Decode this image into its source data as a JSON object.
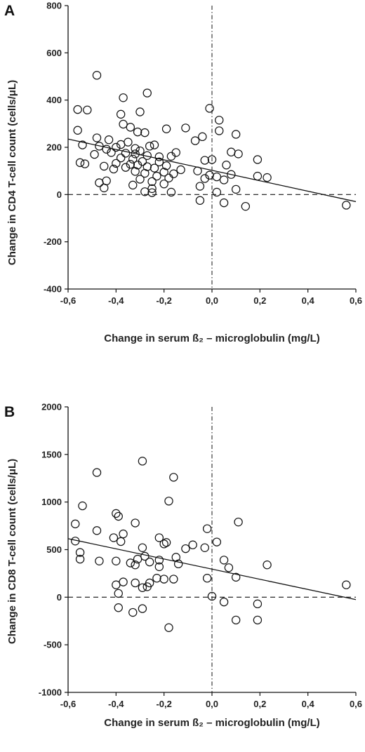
{
  "chart_data": [
    {
      "type": "scatter",
      "panel_label": "A",
      "xlabel": "Change in serum ß₂ – microglobulin (mg/L)",
      "ylabel": "Change in CD4 T-cell count (cells/μL)",
      "xlim": [
        -0.6,
        0.6
      ],
      "ylim": [
        -400,
        800
      ],
      "x_ticks": [
        "-0,6",
        "-0,4",
        "-0,2",
        "0,0",
        "0,2",
        "0,4",
        "0,6"
      ],
      "y_ticks": [
        "800",
        "600",
        "400",
        "200",
        "0",
        "-200",
        "-400"
      ],
      "regression_line": {
        "x": [
          -0.6,
          0.6
        ],
        "y": [
          235,
          -30
        ]
      },
      "reference_lines": {
        "horizontal_dashed_y": 0,
        "vertical_dashdot_x": 0
      },
      "points": [
        {
          "x": -0.48,
          "y": 505
        },
        {
          "x": -0.27,
          "y": 430
        },
        {
          "x": -0.37,
          "y": 410
        },
        {
          "x": -0.01,
          "y": 365
        },
        {
          "x": -0.56,
          "y": 360
        },
        {
          "x": -0.52,
          "y": 358
        },
        {
          "x": -0.3,
          "y": 350
        },
        {
          "x": -0.38,
          "y": 340
        },
        {
          "x": 0.03,
          "y": 315
        },
        {
          "x": -0.37,
          "y": 298
        },
        {
          "x": -0.34,
          "y": 285
        },
        {
          "x": -0.11,
          "y": 282
        },
        {
          "x": -0.56,
          "y": 272
        },
        {
          "x": 0.03,
          "y": 270
        },
        {
          "x": -0.31,
          "y": 265
        },
        {
          "x": -0.28,
          "y": 262
        },
        {
          "x": -0.19,
          "y": 278
        },
        {
          "x": 0.1,
          "y": 255
        },
        {
          "x": -0.04,
          "y": 245
        },
        {
          "x": -0.48,
          "y": 240
        },
        {
          "x": -0.07,
          "y": 228
        },
        {
          "x": -0.43,
          "y": 232
        },
        {
          "x": -0.38,
          "y": 212
        },
        {
          "x": -0.54,
          "y": 210
        },
        {
          "x": -0.47,
          "y": 205
        },
        {
          "x": -0.35,
          "y": 222
        },
        {
          "x": -0.24,
          "y": 210
        },
        {
          "x": -0.26,
          "y": 205
        },
        {
          "x": -0.4,
          "y": 200
        },
        {
          "x": -0.32,
          "y": 195
        },
        {
          "x": -0.44,
          "y": 192
        },
        {
          "x": -0.3,
          "y": 185
        },
        {
          "x": -0.42,
          "y": 178
        },
        {
          "x": -0.36,
          "y": 175
        },
        {
          "x": -0.32,
          "y": 172
        },
        {
          "x": -0.15,
          "y": 178
        },
        {
          "x": -0.49,
          "y": 170
        },
        {
          "x": -0.27,
          "y": 165
        },
        {
          "x": -0.17,
          "y": 162
        },
        {
          "x": -0.22,
          "y": 160
        },
        {
          "x": 0.08,
          "y": 180
        },
        {
          "x": -0.38,
          "y": 155
        },
        {
          "x": -0.33,
          "y": 150
        },
        {
          "x": 0.0,
          "y": 148
        },
        {
          "x": -0.03,
          "y": 145
        },
        {
          "x": 0.11,
          "y": 172
        },
        {
          "x": 0.19,
          "y": 148
        },
        {
          "x": -0.29,
          "y": 140
        },
        {
          "x": -0.22,
          "y": 138
        },
        {
          "x": -0.4,
          "y": 132
        },
        {
          "x": -0.53,
          "y": 130
        },
        {
          "x": -0.55,
          "y": 135
        },
        {
          "x": -0.34,
          "y": 128
        },
        {
          "x": -0.31,
          "y": 125
        },
        {
          "x": -0.19,
          "y": 122
        },
        {
          "x": -0.45,
          "y": 120
        },
        {
          "x": -0.27,
          "y": 118
        },
        {
          "x": 0.06,
          "y": 125
        },
        {
          "x": -0.36,
          "y": 115
        },
        {
          "x": -0.24,
          "y": 112
        },
        {
          "x": -0.41,
          "y": 108
        },
        {
          "x": -0.13,
          "y": 105
        },
        {
          "x": -0.06,
          "y": 100
        },
        {
          "x": -0.32,
          "y": 98
        },
        {
          "x": -0.2,
          "y": 95
        },
        {
          "x": -0.28,
          "y": 90
        },
        {
          "x": -0.16,
          "y": 88
        },
        {
          "x": -0.01,
          "y": 82
        },
        {
          "x": 0.08,
          "y": 85
        },
        {
          "x": -0.23,
          "y": 78
        },
        {
          "x": 0.02,
          "y": 75
        },
        {
          "x": 0.19,
          "y": 78
        },
        {
          "x": 0.23,
          "y": 72
        },
        {
          "x": -0.18,
          "y": 70
        },
        {
          "x": -0.3,
          "y": 65
        },
        {
          "x": -0.03,
          "y": 68
        },
        {
          "x": 0.05,
          "y": 62
        },
        {
          "x": -0.44,
          "y": 58
        },
        {
          "x": -0.25,
          "y": 55
        },
        {
          "x": -0.47,
          "y": 50
        },
        {
          "x": -0.2,
          "y": 45
        },
        {
          "x": -0.33,
          "y": 40
        },
        {
          "x": -0.05,
          "y": 35
        },
        {
          "x": -0.25,
          "y": 25
        },
        {
          "x": -0.45,
          "y": 28
        },
        {
          "x": 0.1,
          "y": 22
        },
        {
          "x": -0.28,
          "y": 12
        },
        {
          "x": -0.17,
          "y": 10
        },
        {
          "x": -0.25,
          "y": 8
        },
        {
          "x": 0.02,
          "y": 10
        },
        {
          "x": -0.05,
          "y": -25
        },
        {
          "x": 0.05,
          "y": -35
        },
        {
          "x": 0.14,
          "y": -50
        },
        {
          "x": 0.56,
          "y": -45
        }
      ]
    },
    {
      "type": "scatter",
      "panel_label": "B",
      "xlabel": "Change in serum ß₂ – microglobulin (mg/L)",
      "ylabel": "Change in CD8 T-cell count (cells/μL)",
      "xlim": [
        -0.6,
        0.6
      ],
      "ylim": [
        -1000,
        2000
      ],
      "x_ticks": [
        "-0,6",
        "-0,4",
        "-0,2",
        "0,0",
        "0,2",
        "0,4",
        "0,6"
      ],
      "y_ticks": [
        "2000",
        "1500",
        "1000",
        "500",
        "0",
        "-500",
        "-1000"
      ],
      "regression_line": {
        "x": [
          -0.6,
          0.6
        ],
        "y": [
          615,
          -25
        ]
      },
      "reference_lines": {
        "horizontal_dashed_y": 0,
        "vertical_dashdot_x": 0
      },
      "points": [
        {
          "x": -0.29,
          "y": 1430
        },
        {
          "x": -0.48,
          "y": 1310
        },
        {
          "x": -0.16,
          "y": 1260
        },
        {
          "x": -0.18,
          "y": 1010
        },
        {
          "x": -0.54,
          "y": 960
        },
        {
          "x": -0.4,
          "y": 880
        },
        {
          "x": -0.39,
          "y": 850
        },
        {
          "x": 0.11,
          "y": 790
        },
        {
          "x": -0.32,
          "y": 780
        },
        {
          "x": -0.57,
          "y": 770
        },
        {
          "x": -0.02,
          "y": 720
        },
        {
          "x": -0.48,
          "y": 700
        },
        {
          "x": -0.37,
          "y": 665
        },
        {
          "x": -0.41,
          "y": 625
        },
        {
          "x": -0.22,
          "y": 625
        },
        {
          "x": -0.38,
          "y": 585
        },
        {
          "x": -0.57,
          "y": 590
        },
        {
          "x": -0.19,
          "y": 575
        },
        {
          "x": -0.2,
          "y": 560
        },
        {
          "x": 0.02,
          "y": 580
        },
        {
          "x": -0.08,
          "y": 550
        },
        {
          "x": -0.11,
          "y": 510
        },
        {
          "x": -0.03,
          "y": 520
        },
        {
          "x": -0.29,
          "y": 520
        },
        {
          "x": -0.55,
          "y": 470
        },
        {
          "x": -0.15,
          "y": 420
        },
        {
          "x": -0.28,
          "y": 430
        },
        {
          "x": -0.31,
          "y": 400
        },
        {
          "x": -0.55,
          "y": 400
        },
        {
          "x": -0.22,
          "y": 390
        },
        {
          "x": -0.47,
          "y": 380
        },
        {
          "x": -0.4,
          "y": 380
        },
        {
          "x": -0.26,
          "y": 370
        },
        {
          "x": -0.34,
          "y": 360
        },
        {
          "x": -0.14,
          "y": 350
        },
        {
          "x": -0.32,
          "y": 340
        },
        {
          "x": 0.05,
          "y": 390
        },
        {
          "x": 0.07,
          "y": 310
        },
        {
          "x": 0.23,
          "y": 340
        },
        {
          "x": -0.22,
          "y": 320
        },
        {
          "x": -0.02,
          "y": 200
        },
        {
          "x": 0.1,
          "y": 210
        },
        {
          "x": -0.23,
          "y": 200
        },
        {
          "x": -0.2,
          "y": 190
        },
        {
          "x": -0.16,
          "y": 190
        },
        {
          "x": -0.37,
          "y": 160
        },
        {
          "x": -0.32,
          "y": 150
        },
        {
          "x": -0.26,
          "y": 150
        },
        {
          "x": -0.4,
          "y": 130
        },
        {
          "x": -0.27,
          "y": 110
        },
        {
          "x": -0.29,
          "y": 100
        },
        {
          "x": 0.56,
          "y": 130
        },
        {
          "x": -0.39,
          "y": 40
        },
        {
          "x": 0.0,
          "y": 10
        },
        {
          "x": 0.05,
          "y": -50
        },
        {
          "x": 0.19,
          "y": -70
        },
        {
          "x": -0.39,
          "y": -110
        },
        {
          "x": -0.29,
          "y": -120
        },
        {
          "x": -0.33,
          "y": -160
        },
        {
          "x": 0.1,
          "y": -240
        },
        {
          "x": 0.19,
          "y": -240
        },
        {
          "x": -0.18,
          "y": -320
        }
      ]
    }
  ]
}
